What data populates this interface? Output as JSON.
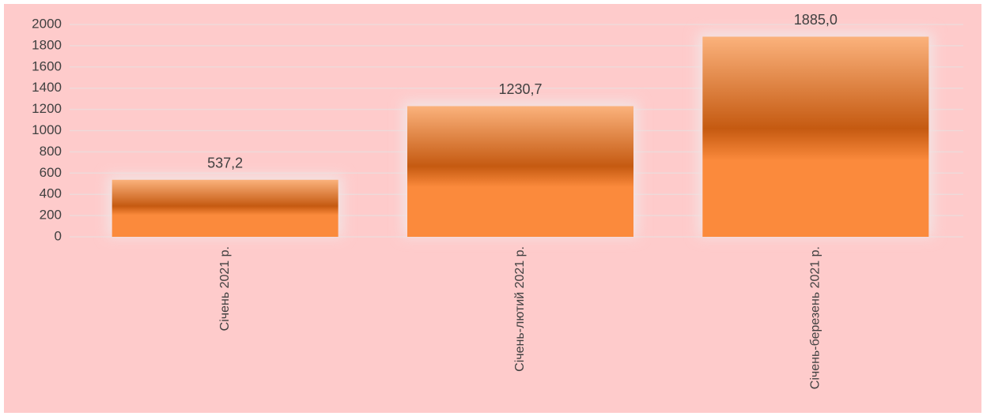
{
  "chart_data": {
    "type": "bar",
    "categories": [
      "Січень 2021 р.",
      "Січень-лютий 2021 р.",
      "Січень-березень 2021 р."
    ],
    "values": [
      537.2,
      1230.7,
      1885.0
    ],
    "value_labels": [
      "537,2",
      "1230,7",
      "1885,0"
    ],
    "color": "#fb8a3c",
    "ylim": [
      0,
      2000
    ],
    "yticks": [
      0,
      200,
      400,
      600,
      800,
      1000,
      1200,
      1400,
      1600,
      1800,
      2000
    ],
    "grid": true
  }
}
